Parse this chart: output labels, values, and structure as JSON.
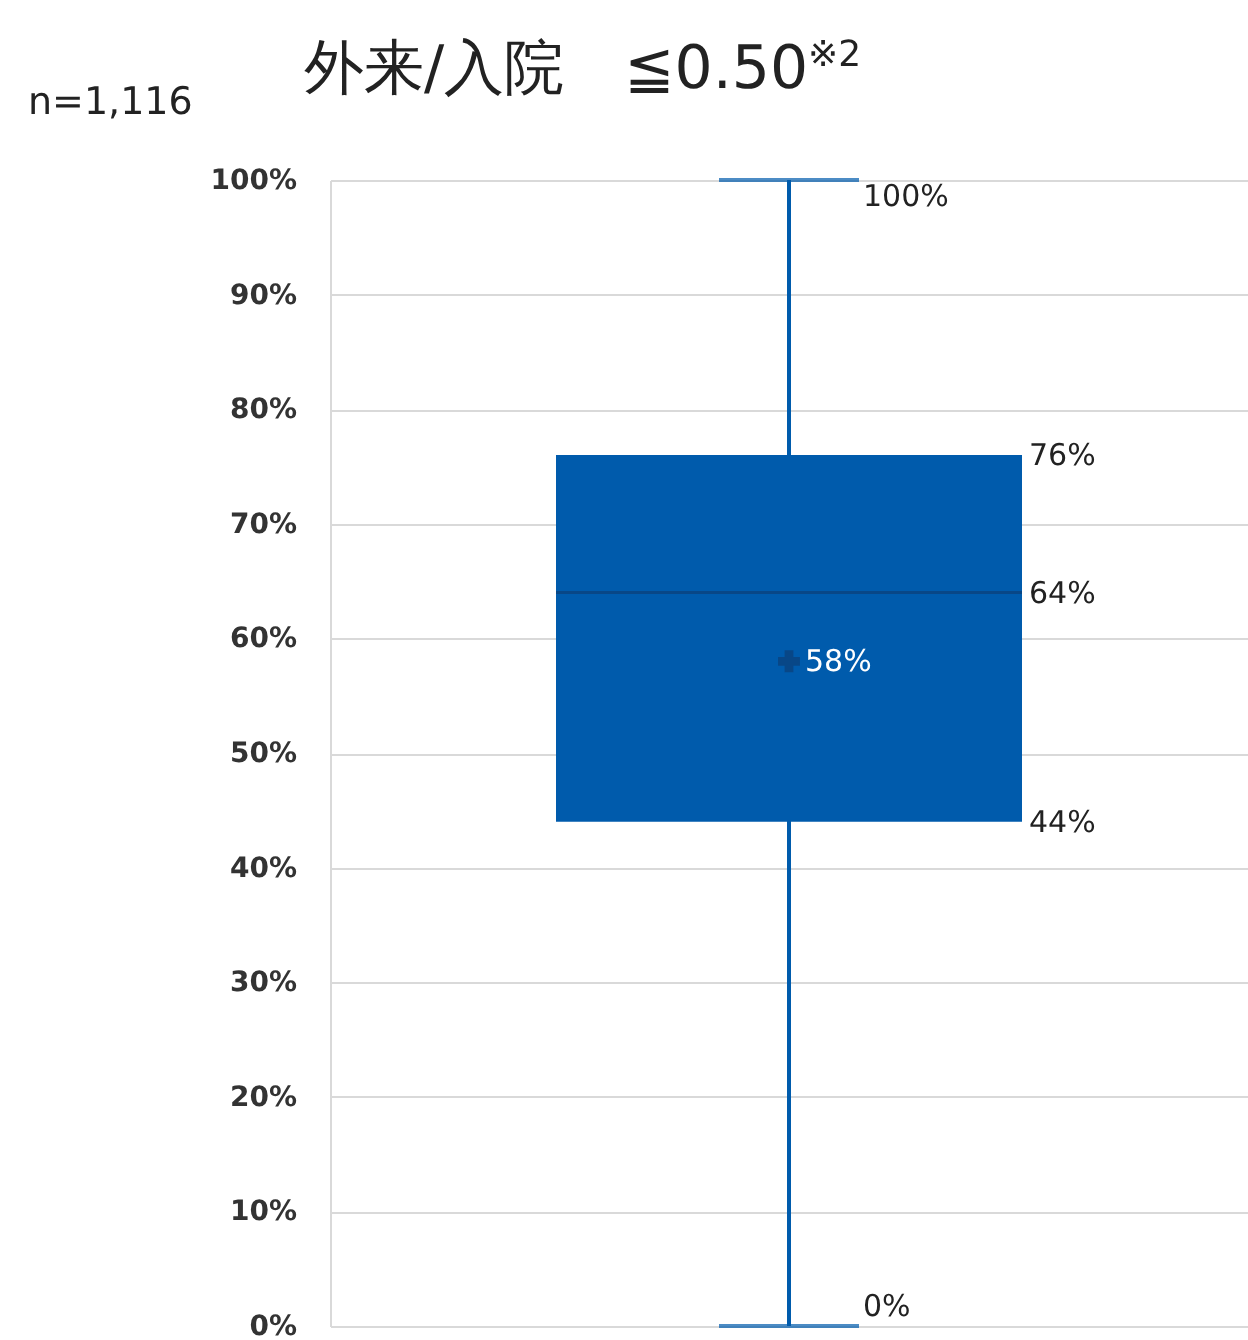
{
  "chart_data": {
    "type": "box",
    "title": "外来/入院　≦0.50$^{※2}$",
    "annotations": [
      "n=1,116",
      "100%",
      "76%",
      "64%",
      "58%",
      "44%",
      "0%"
    ],
    "categories": [
      null
    ],
    "boxes": [
      {
        "low": 0,
        "q1": 44,
        "median": 64,
        "q3": 76,
        "high": 100,
        "mean": 58
      }
    ],
    "color": "#005bac",
    "ylim": [
      0,
      100
    ],
    "yticks": [
      {
        "value": 0,
        "label": "0%"
      },
      {
        "value": 10,
        "label": "10%"
      },
      {
        "value": 20,
        "label": "20%"
      },
      {
        "value": 30,
        "label": "30%"
      },
      {
        "value": 40,
        "label": "40%"
      },
      {
        "value": 50,
        "label": "50%"
      },
      {
        "value": 60,
        "label": "60%"
      },
      {
        "value": 70,
        "label": "70%"
      },
      {
        "value": 80,
        "label": "80%"
      },
      {
        "value": 90,
        "label": "90%"
      },
      {
        "value": 100,
        "label": "100%"
      }
    ],
    "grid": "y",
    "tick_labels": "y",
    "marker": "cross"
  }
}
